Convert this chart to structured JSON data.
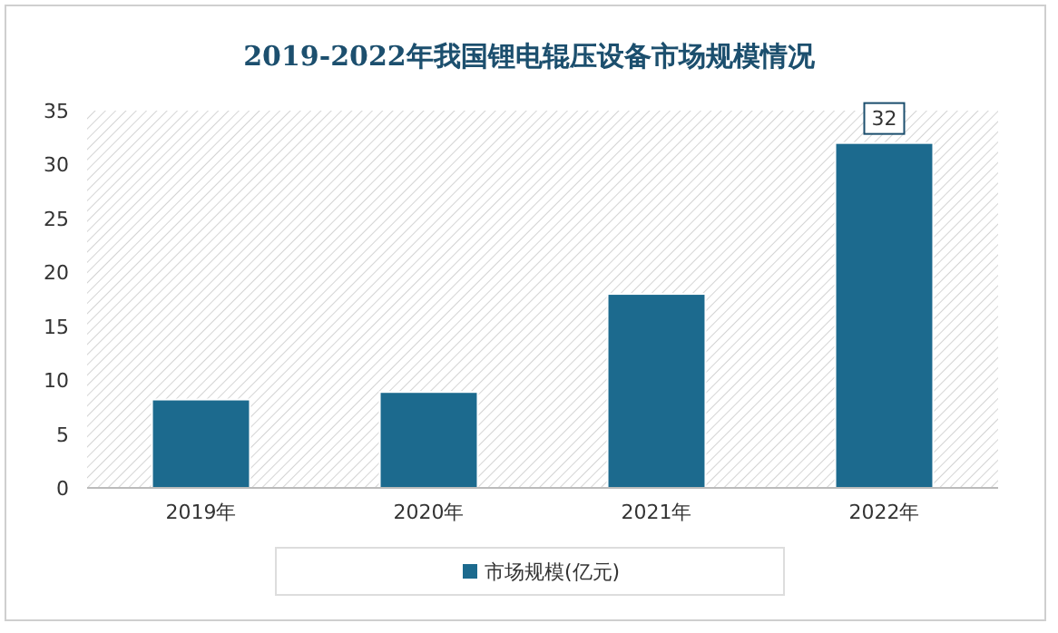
{
  "chart_data": {
    "type": "bar",
    "title": "2019-2022年我国锂电辊压设备市场规模情况",
    "categories": [
      "2019年",
      "2020年",
      "2021年",
      "2022年"
    ],
    "series": [
      {
        "name": "市场规模(亿元)",
        "color": "#1c6a8e",
        "values": [
          8.2,
          8.9,
          18,
          32
        ],
        "value_labels": [
          null,
          null,
          null,
          "32"
        ]
      }
    ],
    "ylim": [
      0,
      35
    ],
    "yticks": [
      0,
      5,
      10,
      15,
      20,
      25,
      30,
      35
    ],
    "grid": false,
    "legend": "bottom"
  }
}
